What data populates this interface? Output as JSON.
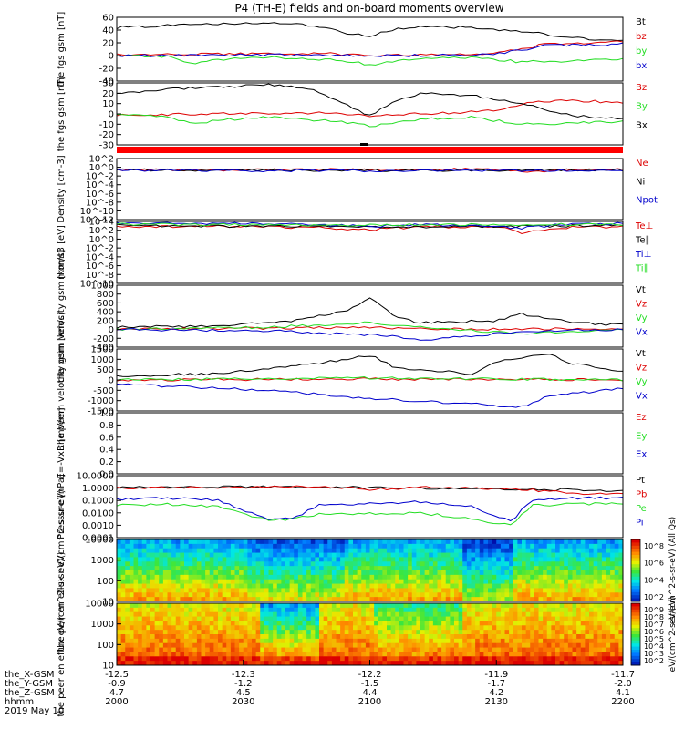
{
  "title": "P4 (TH-E) fields and on-board moments overview",
  "colors": {
    "black": "#000000",
    "red": "#dd0000",
    "green": "#22dd22",
    "blue": "#0000cc",
    "flag": "#ff0000"
  },
  "chart_data": [
    {
      "type": "line",
      "ylabel": "the fgs gsm [nT]",
      "ylim": [
        -40,
        60
      ],
      "yticks": [
        "60",
        "40",
        "20",
        "0",
        "-20",
        "-40"
      ],
      "series": [
        {
          "name": "Bt",
          "color": "black",
          "x": [
            0,
            0.1,
            0.2,
            0.3,
            0.38,
            0.45,
            0.5,
            0.55,
            0.6,
            0.7,
            0.8,
            0.9,
            1.0
          ],
          "values": [
            44,
            47,
            49,
            51,
            48,
            36,
            30,
            42,
            45,
            44,
            38,
            28,
            22
          ]
        },
        {
          "name": "bz",
          "color": "red",
          "x": [
            0,
            0.2,
            0.4,
            0.5,
            0.6,
            0.7,
            0.78,
            0.85,
            0.92,
            1.0
          ],
          "values": [
            1,
            2,
            4,
            0,
            2,
            1,
            8,
            18,
            20,
            22
          ]
        },
        {
          "name": "by",
          "color": "green",
          "x": [
            0,
            0.1,
            0.15,
            0.2,
            0.3,
            0.45,
            0.5,
            0.6,
            0.7,
            0.8,
            0.9,
            1.0
          ],
          "values": [
            0,
            -2,
            -12,
            -6,
            -3,
            -8,
            -14,
            -5,
            -3,
            -10,
            -8,
            -6
          ]
        },
        {
          "name": "bx",
          "color": "blue",
          "x": [
            0,
            0.3,
            0.6,
            0.75,
            0.85,
            1.0
          ],
          "values": [
            0,
            1,
            0,
            2,
            16,
            18
          ]
        }
      ]
    },
    {
      "type": "line",
      "ylabel": "the fgs gsm [nT]",
      "ylim": [
        -30,
        30
      ],
      "yticks": [
        "30",
        "20",
        "10",
        "0",
        "-10",
        "-20",
        "-30"
      ],
      "series": [
        {
          "name": "Bz",
          "color": "red",
          "x": [
            0,
            0.2,
            0.4,
            0.5,
            0.6,
            0.75,
            0.82,
            0.88,
            0.95,
            1.0
          ],
          "values": [
            -1,
            0,
            1,
            -2,
            0,
            3,
            11,
            13,
            12,
            10
          ]
        },
        {
          "name": "By",
          "color": "green",
          "x": [
            0,
            0.1,
            0.15,
            0.2,
            0.3,
            0.45,
            0.5,
            0.6,
            0.7,
            0.8,
            0.9,
            1.0
          ],
          "values": [
            -1,
            -3,
            -10,
            -6,
            -3,
            -8,
            -12,
            -5,
            -3,
            -10,
            -9,
            -7
          ]
        },
        {
          "name": "Bx",
          "color": "black",
          "x": [
            0,
            0.1,
            0.2,
            0.3,
            0.38,
            0.45,
            0.5,
            0.55,
            0.6,
            0.7,
            0.8,
            0.9,
            1.0
          ],
          "values": [
            20,
            24,
            26,
            28,
            25,
            10,
            -2,
            12,
            20,
            18,
            10,
            -2,
            -4
          ]
        }
      ]
    },
    {
      "type": "line",
      "ylabel": "Density [cm-3]",
      "ylim": [
        -12,
        3
      ],
      "log": true,
      "yticks": [
        "10^2",
        "10^0",
        "10^-2",
        "10^-4",
        "10^-6",
        "10^-8",
        "10^-10",
        "10^-12"
      ],
      "series": [
        {
          "name": "Ne",
          "color": "red",
          "x": [
            0,
            0.2,
            0.4,
            0.5,
            0.6,
            0.75,
            0.8,
            0.9,
            1.0
          ],
          "values": [
            0.3,
            0.2,
            0.3,
            0.2,
            0.3,
            0.4,
            -0.3,
            0.3,
            0.3
          ]
        },
        {
          "name": "Ni",
          "color": "black",
          "x": [
            0,
            0.5,
            1.0
          ],
          "values": [
            0.2,
            0.1,
            0.2
          ]
        },
        {
          "name": "Npot",
          "color": "blue",
          "x": [
            0,
            0.5,
            1.0
          ],
          "values": [
            0.1,
            0.0,
            0.1
          ]
        }
      ]
    },
    {
      "type": "line",
      "ylabel": "momt3 [eV]",
      "ylim": [
        -11,
        4
      ],
      "log": true,
      "yticks": [
        "10^4",
        "10^2",
        "10^0",
        "10^-2",
        "10^-4",
        "10^-6",
        "10^-8",
        "10^-10"
      ],
      "series": [
        {
          "name": "Te⊥",
          "color": "red",
          "x": [
            0,
            0.2,
            0.4,
            0.5,
            0.6,
            0.75,
            0.8,
            0.9,
            1.0
          ],
          "values": [
            2.8,
            2.8,
            2.5,
            2.0,
            2.6,
            2.8,
            1.2,
            2.6,
            2.7
          ]
        },
        {
          "name": "Te∥",
          "color": "black",
          "x": [
            0,
            0.5,
            1.0
          ],
          "values": [
            3.0,
            2.6,
            3.0
          ]
        },
        {
          "name": "Ti⊥",
          "color": "blue",
          "x": [
            0,
            0.2,
            0.4,
            0.5,
            0.6,
            0.8,
            0.9,
            1.0
          ],
          "values": [
            3.6,
            3.5,
            3.2,
            2.8,
            3.3,
            2.4,
            3.4,
            3.5
          ]
        },
        {
          "name": "Ti∥",
          "color": "green",
          "x": [
            0,
            0.5,
            1.0
          ],
          "values": [
            3.3,
            3.1,
            3.3
          ]
        }
      ]
    },
    {
      "type": "line",
      "ylabel": "the peim velocity gsm [km/s]",
      "ylim": [
        -400,
        1000
      ],
      "yticks": [
        "1000",
        "800",
        "600",
        "400",
        "200",
        "0",
        "-200",
        "-400"
      ],
      "series": [
        {
          "name": "Vt",
          "color": "black",
          "x": [
            0,
            0.2,
            0.35,
            0.45,
            0.5,
            0.55,
            0.6,
            0.75,
            0.8,
            0.9,
            1.0
          ],
          "values": [
            50,
            80,
            200,
            400,
            700,
            300,
            150,
            200,
            350,
            150,
            100
          ]
        },
        {
          "name": "Vz",
          "color": "red",
          "x": [
            0,
            0.3,
            0.5,
            0.7,
            1.0
          ],
          "values": [
            0,
            30,
            50,
            0,
            20
          ]
        },
        {
          "name": "Vy",
          "color": "green",
          "x": [
            0,
            0.3,
            0.5,
            0.8,
            1.0
          ],
          "values": [
            0,
            50,
            150,
            -100,
            0
          ]
        },
        {
          "name": "Vx",
          "color": "blue",
          "x": [
            0,
            0.3,
            0.55,
            0.6,
            0.8,
            1.0
          ],
          "values": [
            0,
            -30,
            -150,
            -250,
            -50,
            0
          ]
        }
      ]
    },
    {
      "type": "line",
      "ylabel": "the peem velocity gsm [km/s]",
      "ylim": [
        -1500,
        1500
      ],
      "yticks": [
        "1500",
        "1000",
        "500",
        "0",
        "-500",
        "-1000",
        "-1500"
      ],
      "series": [
        {
          "name": "Vt",
          "color": "black",
          "x": [
            0,
            0.2,
            0.4,
            0.5,
            0.55,
            0.7,
            0.75,
            0.85,
            0.9,
            1.0
          ],
          "values": [
            200,
            300,
            800,
            1200,
            600,
            300,
            900,
            1300,
            800,
            400
          ]
        },
        {
          "name": "Vz",
          "color": "red",
          "x": [
            0,
            0.5,
            1.0
          ],
          "values": [
            0,
            50,
            0
          ]
        },
        {
          "name": "Vy",
          "color": "green",
          "x": [
            0,
            0.5,
            1.0
          ],
          "values": [
            0,
            100,
            0
          ]
        },
        {
          "name": "Vx",
          "color": "blue",
          "x": [
            0,
            0.3,
            0.5,
            0.8,
            0.85,
            1.0
          ],
          "values": [
            -200,
            -500,
            -900,
            -1300,
            -800,
            -400
          ]
        }
      ]
    },
    {
      "type": "line",
      "ylabel": "E=-VxB [mV/m]",
      "ylim": [
        0,
        1
      ],
      "yticks": [
        "1.0",
        "0.8",
        "0.6",
        "0.4",
        "0.2",
        "0.0"
      ],
      "series": [
        {
          "name": "Ez",
          "color": "red",
          "x": [],
          "values": []
        },
        {
          "name": "Ey",
          "color": "green",
          "x": [],
          "values": []
        },
        {
          "name": "Ex",
          "color": "blue",
          "x": [],
          "values": []
        }
      ]
    },
    {
      "type": "line",
      "ylabel": "Pressure [nPa]",
      "ylim": [
        -4,
        1
      ],
      "log": true,
      "yticks": [
        "10.0000",
        "1.0000",
        "0.1000",
        "0.0100",
        "0.0010",
        "0.0001"
      ],
      "series": [
        {
          "name": "Pt",
          "color": "black",
          "x": [
            0,
            0.2,
            0.4,
            0.6,
            0.8,
            1.0
          ],
          "values": [
            0.05,
            0.08,
            0.1,
            0.0,
            -0.1,
            -0.2
          ]
        },
        {
          "name": "Pb",
          "color": "red",
          "x": [
            0,
            0.2,
            0.4,
            0.5,
            0.6,
            0.8,
            0.9,
            1.0
          ],
          "values": [
            0.0,
            0.05,
            0.1,
            -0.1,
            0.05,
            -0.1,
            -0.4,
            -0.5
          ]
        },
        {
          "name": "Pe",
          "color": "green",
          "x": [
            0,
            0.1,
            0.2,
            0.3,
            0.35,
            0.4,
            0.6,
            0.7,
            0.78,
            0.82,
            0.9,
            1.0
          ],
          "values": [
            -1.4,
            -1.3,
            -1.5,
            -2.6,
            -2.5,
            -2.1,
            -2.0,
            -2.5,
            -3.0,
            -1.4,
            -1.3,
            -1.2
          ]
        },
        {
          "name": "Pi",
          "color": "blue",
          "x": [
            0,
            0.1,
            0.2,
            0.3,
            0.35,
            0.4,
            0.6,
            0.7,
            0.78,
            0.82,
            0.9,
            1.0
          ],
          "values": [
            -0.9,
            -0.8,
            -1.0,
            -2.5,
            -2.4,
            -1.4,
            -1.1,
            -1.5,
            -2.7,
            -0.9,
            -0.8,
            -0.8
          ]
        }
      ]
    },
    {
      "type": "heatmap",
      "ylabel": "the peir en eflux eV/(cm^2-s-sr-eV)",
      "ylim": [
        1,
        4.3
      ],
      "log": true,
      "yticks": [
        "10000",
        "1000",
        "100",
        "10"
      ],
      "colorbar": {
        "ticks": [
          "10^8",
          "10^6",
          "10^4",
          "10^2"
        ],
        "label": "eV/(cm^2-s-sr-eV) (All Qs)"
      }
    },
    {
      "type": "heatmap",
      "ylabel": "the peer en eflux eV/(cm^2-s-sr-eV)",
      "ylim": [
        0.85,
        4.3
      ],
      "log": true,
      "yticks": [
        "10000",
        "1000",
        "100",
        "10"
      ],
      "colorbar": {
        "ticks": [
          "10^9",
          "10^8",
          "10^7",
          "10^6",
          "10^5",
          "10^4",
          "10^3",
          "10^2"
        ],
        "label": "eV/(cm^2-s-sr-eV)"
      }
    }
  ],
  "ephemeris": {
    "labels": [
      "the_X-GSM",
      "the_Y-GSM",
      "the_Z-GSM",
      "hhmm",
      "2019 May 10"
    ],
    "columns": [
      [
        "-12.5",
        "-0.9",
        "4.7",
        "2000"
      ],
      [
        "-12.3",
        "-1.2",
        "4.5",
        "2030"
      ],
      [
        "-12.2",
        "-1.5",
        "4.4",
        "2100"
      ],
      [
        "-11.9",
        "-1.7",
        "4.2",
        "2130"
      ],
      [
        "-11.7",
        "-2.0",
        "4.1",
        "2200"
      ]
    ]
  },
  "colorbar_units": "[eV/(cm^2-s-sr-eV)]"
}
